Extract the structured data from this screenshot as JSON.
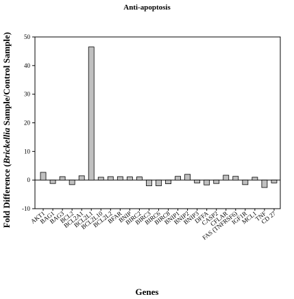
{
  "chart_data": {
    "type": "bar",
    "title": "Anti-apoptosis",
    "xlabel": "Genes",
    "ylabel_parts": [
      "Fold Difference (",
      "Brickellia",
      " Sample/Control Sample)"
    ],
    "ylim": [
      -10,
      50
    ],
    "yticks": [
      -10,
      0,
      10,
      20,
      30,
      40,
      50
    ],
    "grid": false,
    "categories": [
      "AKT1",
      "BAG1",
      "BAG3",
      "BCL2",
      "BCL2A1",
      "BCL2L1",
      "BCL2L10",
      "BCL2L2",
      "BFAR",
      "BNIP",
      "BIRC2",
      "BIRC3",
      "BIRC6",
      "BIRC8",
      "BNIP1",
      "BNIP2",
      "BNIP3",
      "DFFA",
      "CASP2",
      "CFLAR",
      "FAS (TNFRSF6)",
      "IGF1R",
      "MCL1",
      "TNF",
      "CD 27"
    ],
    "values": [
      2.7,
      -1.2,
      1.2,
      -1.6,
      1.5,
      46.5,
      1.0,
      1.2,
      1.2,
      1.1,
      1.1,
      -2.0,
      -2.0,
      -1.3,
      1.3,
      2.0,
      -1.0,
      -1.7,
      -1.2,
      1.7,
      1.3,
      -1.6,
      1.0,
      -2.6,
      -1.0
    ],
    "bar_color": "#c0c0c0",
    "bar_stroke": "#000000"
  }
}
